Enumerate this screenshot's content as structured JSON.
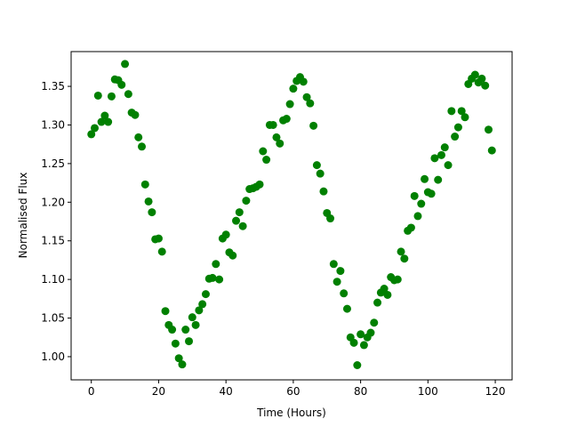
{
  "chart_data": {
    "type": "scatter",
    "title": "",
    "xlabel": "Time (Hours)",
    "ylabel": "Normalised Flux",
    "xlim": [
      -6,
      125
    ],
    "ylim": [
      0.97,
      1.395
    ],
    "xticks": [
      0,
      20,
      40,
      60,
      80,
      100,
      120
    ],
    "xtick_labels": [
      "0",
      "20",
      "40",
      "60",
      "80",
      "100",
      "120"
    ],
    "yticks": [
      1.0,
      1.05,
      1.1,
      1.15,
      1.2,
      1.25,
      1.3,
      1.35
    ],
    "ytick_labels": [
      "1.00",
      "1.05",
      "1.10",
      "1.15",
      "1.20",
      "1.25",
      "1.30",
      "1.35"
    ],
    "grid": false,
    "marker_color": "#008000",
    "series": [
      {
        "x": [
          0,
          1,
          2,
          3,
          4,
          5,
          6,
          7,
          8,
          9,
          10,
          11,
          12,
          13,
          14,
          15,
          16,
          17,
          18,
          19,
          20,
          21,
          22,
          23,
          24,
          25,
          26,
          27,
          28,
          29,
          30,
          31,
          32,
          33,
          34,
          35,
          36,
          37,
          38,
          39,
          40,
          41,
          42,
          43,
          44,
          45,
          46,
          47,
          48,
          49,
          50,
          51,
          52,
          53,
          54,
          55,
          56,
          57,
          58,
          59,
          60,
          61,
          62,
          63,
          64,
          65,
          66,
          67,
          68,
          69,
          70,
          71,
          72,
          73,
          74,
          75,
          76,
          77,
          78,
          79,
          80,
          81,
          82,
          83,
          84,
          85,
          86,
          87,
          88,
          89,
          90,
          91,
          92,
          93,
          94,
          95,
          96,
          97,
          98,
          99,
          100,
          101,
          102,
          103,
          104,
          105,
          106,
          107,
          108,
          109,
          110,
          111,
          112,
          113,
          114,
          115,
          116,
          117,
          118,
          119
        ],
        "y": [
          1.288,
          1.296,
          1.338,
          1.304,
          1.312,
          1.304,
          1.337,
          1.359,
          1.358,
          1.352,
          1.379,
          1.34,
          1.316,
          1.313,
          1.284,
          1.272,
          1.223,
          1.201,
          1.187,
          1.152,
          1.153,
          1.136,
          1.059,
          1.041,
          1.035,
          1.017,
          0.998,
          0.99,
          1.035,
          1.02,
          1.051,
          1.041,
          1.06,
          1.068,
          1.081,
          1.101,
          1.102,
          1.12,
          1.1,
          1.153,
          1.158,
          1.135,
          1.131,
          1.176,
          1.187,
          1.169,
          1.202,
          1.217,
          1.218,
          1.22,
          1.223,
          1.266,
          1.255,
          1.3,
          1.3,
          1.284,
          1.276,
          1.306,
          1.308,
          1.327,
          1.347,
          1.357,
          1.362,
          1.356,
          1.336,
          1.328,
          1.299,
          1.248,
          1.237,
          1.214,
          1.186,
          1.179,
          1.12,
          1.097,
          1.111,
          1.082,
          1.062,
          1.025,
          1.018,
          0.989,
          1.029,
          1.015,
          1.025,
          1.031,
          1.044,
          1.07,
          1.083,
          1.088,
          1.08,
          1.103,
          1.099,
          1.1,
          1.136,
          1.127,
          1.163,
          1.167,
          1.208,
          1.182,
          1.198,
          1.23,
          1.213,
          1.211,
          1.257,
          1.229,
          1.261,
          1.271,
          1.248,
          1.318,
          1.285,
          1.297,
          1.318,
          1.31,
          1.353,
          1.36,
          1.365,
          1.355,
          1.36,
          1.351,
          1.294,
          1.267
        ]
      }
    ]
  }
}
